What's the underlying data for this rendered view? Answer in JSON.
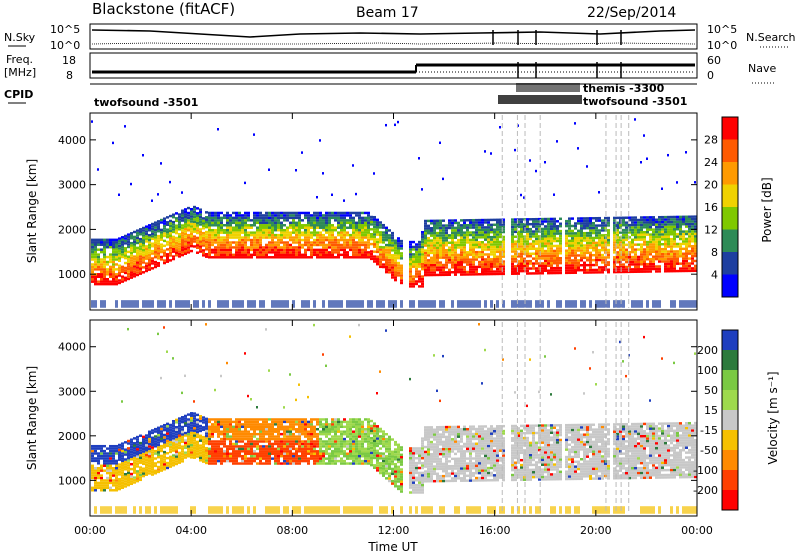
{
  "header": {
    "station": "Blackstone (fitACF)",
    "beam": "Beam 17",
    "date": "22/Sep/2014"
  },
  "params": {
    "nsky_label": "N.Sky",
    "nsky_ticks": [
      "10^5",
      "10^0"
    ],
    "nsearch_label": "N.Search",
    "nsearch_ticks": [
      "10^5",
      "10^0"
    ],
    "freq_label_1": "Freq.",
    "freq_label_2": "[MHz]",
    "freq_ticks": [
      "18",
      "8"
    ],
    "nave_label": "Nave",
    "nave_ticks": [
      "60",
      "0"
    ],
    "cpid_label": "CPID",
    "cpid_left": "twofsound  -3501",
    "cpid_right": "twofsound  -3501",
    "cpid_mid": "themis  -3300"
  },
  "chart_data": [
    {
      "type": "heatmap",
      "name": "power",
      "ylabel": "Slant Range [km]",
      "colorbar_label": "Power [dB]",
      "colorbar_ticks": [
        "28",
        "24",
        "20",
        "16",
        "12",
        "8",
        "4"
      ],
      "colorbar_colors": [
        "#ff0000",
        "#ff5a00",
        "#ff9a00",
        "#f0d200",
        "#7fc800",
        "#2e8b57",
        "#1e3fa0",
        "#0000ff"
      ],
      "yticks": [
        "4000",
        "3000",
        "2000",
        "1000"
      ],
      "ytick_values": [
        4000,
        3000,
        2000,
        1000
      ],
      "ylim": [
        200,
        4600
      ]
    },
    {
      "type": "heatmap",
      "name": "velocity",
      "ylabel": "Slant Range [km]",
      "colorbar_label": "Velocity [m s⁻¹]",
      "colorbar_ticks": [
        "200",
        "100",
        "50",
        "15",
        "-15",
        "-50",
        "-100",
        "-200"
      ],
      "colorbar_colors": [
        "#1f3fbf",
        "#2c7a3c",
        "#7ac943",
        "#9ed94c",
        "#c8c8c8",
        "#f5c000",
        "#ff8a00",
        "#ff4000",
        "#ff0000"
      ],
      "yticks": [
        "4000",
        "3000",
        "2000",
        "1000"
      ],
      "ytick_values": [
        4000,
        3000,
        2000,
        1000
      ],
      "ylim": [
        200,
        4600
      ]
    }
  ],
  "time_axis": {
    "label": "Time UT",
    "ticks": [
      "00:00",
      "04:00",
      "08:00",
      "12:00",
      "16:00",
      "20:00",
      "00:00"
    ],
    "tick_hours": [
      0,
      4,
      8,
      12,
      16,
      20,
      24
    ]
  }
}
